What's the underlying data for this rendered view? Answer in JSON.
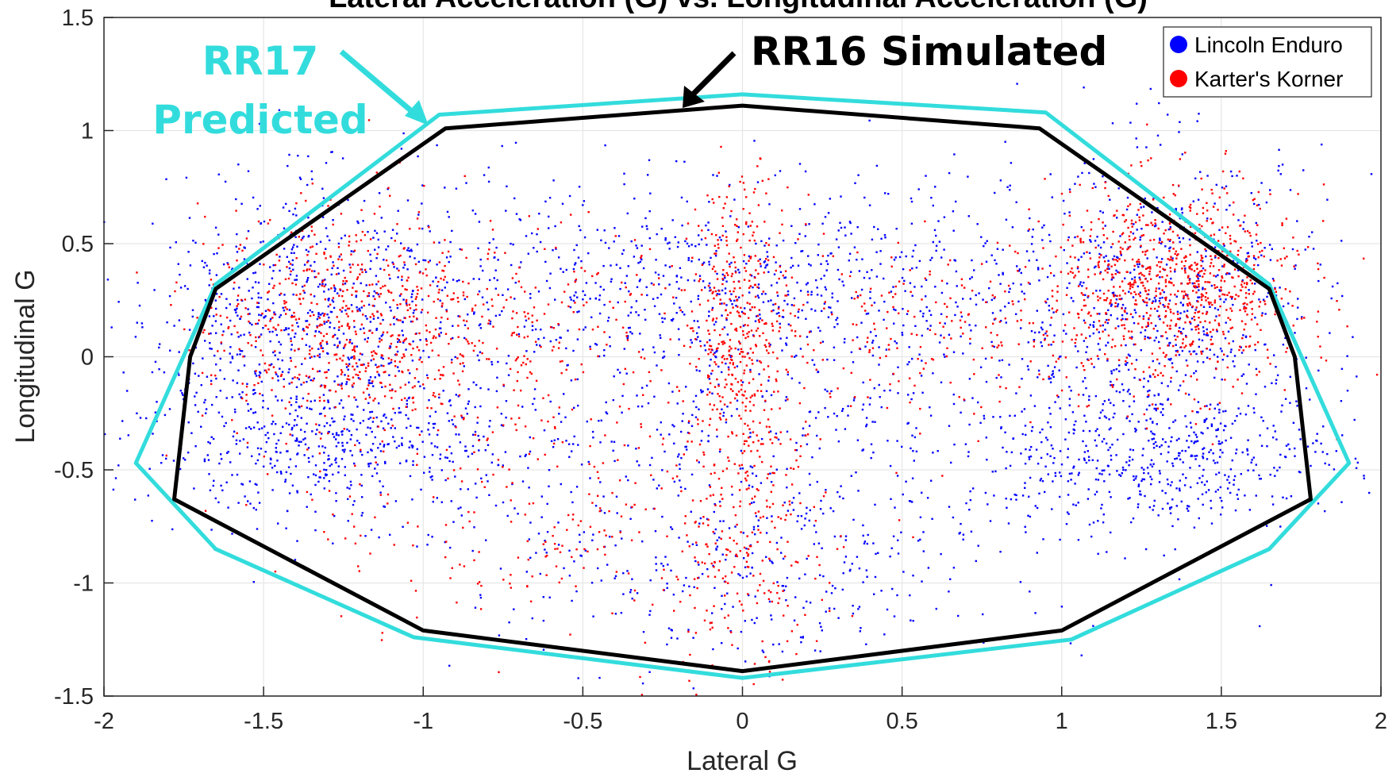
{
  "chart_data": {
    "type": "scatter",
    "title": "Lateral Acceleration (G) vs. Longitudinal Acceleration (G)",
    "xlabel": "Lateral G",
    "ylabel": "Longitudinal G",
    "xlim": [
      -2,
      2
    ],
    "ylim": [
      -1.5,
      1.5
    ],
    "x_ticks": [
      -2,
      -1.5,
      -1,
      -0.5,
      0,
      0.5,
      1,
      1.5,
      2
    ],
    "y_ticks": [
      -1.5,
      -1,
      -0.5,
      0,
      0.5,
      1,
      1.5
    ],
    "x_tick_labels": [
      "-2",
      "-1.5",
      "-1",
      "-0.5",
      "0",
      "0.5",
      "1",
      "1.5",
      "2"
    ],
    "y_tick_labels": [
      "-1.5",
      "-1",
      "-0.5",
      "0",
      "0.5",
      "1",
      "1.5"
    ],
    "grid": true,
    "legend_position": "top-right",
    "series": [
      {
        "name": "Lincoln Enduro",
        "color": "#0000ff",
        "clusters": [
          {
            "x": -1.35,
            "y": 0.2,
            "sx": 0.25,
            "sy": 0.3,
            "weight": 3
          },
          {
            "x": -1.3,
            "y": -0.4,
            "sx": 0.3,
            "sy": 0.15,
            "weight": 2
          },
          {
            "x": 1.35,
            "y": 0.2,
            "sx": 0.25,
            "sy": 0.35,
            "weight": 3
          },
          {
            "x": 1.3,
            "y": -0.45,
            "sx": 0.3,
            "sy": 0.15,
            "weight": 2
          },
          {
            "x": 0,
            "y": 0.35,
            "sx": 0.45,
            "sy": 0.2,
            "weight": 2
          },
          {
            "x": 0,
            "y": -0.4,
            "sx": 0.7,
            "sy": 0.35,
            "weight": 3
          },
          {
            "x": 0,
            "y": -1.05,
            "sx": 0.35,
            "sy": 0.2,
            "weight": 1
          },
          {
            "x": -0.6,
            "y": 0.3,
            "sx": 0.4,
            "sy": 0.3,
            "weight": 1
          },
          {
            "x": 0.6,
            "y": 0.3,
            "sx": 0.4,
            "sy": 0.3,
            "weight": 1
          }
        ]
      },
      {
        "name": "Karter's Korner",
        "color": "#ff0000",
        "clusters": [
          {
            "x": -1.25,
            "y": 0.15,
            "sx": 0.22,
            "sy": 0.25,
            "weight": 3
          },
          {
            "x": 1.35,
            "y": 0.3,
            "sx": 0.2,
            "sy": 0.22,
            "weight": 4
          },
          {
            "x": 0,
            "y": 0.1,
            "sx": 0.08,
            "sy": 0.35,
            "weight": 2
          },
          {
            "x": -0.7,
            "y": 0.1,
            "sx": 0.3,
            "sy": 0.25,
            "weight": 1
          },
          {
            "x": 0.6,
            "y": 0.15,
            "sx": 0.35,
            "sy": 0.2,
            "weight": 1
          },
          {
            "x": -0.6,
            "y": -0.7,
            "sx": 0.4,
            "sy": 0.3,
            "weight": 1
          },
          {
            "x": 0,
            "y": -0.9,
            "sx": 0.15,
            "sy": 0.3,
            "weight": 1
          }
        ]
      }
    ],
    "envelopes": [
      {
        "label": "RR17 Predicted",
        "label_lines": [
          "RR17",
          "Predicted"
        ],
        "color": "#33dcdc",
        "points": [
          [
            -0.95,
            1.07
          ],
          [
            0,
            1.16
          ],
          [
            0.95,
            1.08
          ],
          [
            1.65,
            0.32
          ],
          [
            1.9,
            -0.47
          ],
          [
            1.65,
            -0.85
          ],
          [
            1.03,
            -1.25
          ],
          [
            0,
            -1.42
          ],
          [
            -1.03,
            -1.24
          ],
          [
            -1.65,
            -0.85
          ],
          [
            -1.9,
            -0.47
          ],
          [
            -1.65,
            0.32
          ]
        ]
      },
      {
        "label": "RR16 Simulated",
        "color": "#000000",
        "points": [
          [
            -0.93,
            1.01
          ],
          [
            0,
            1.11
          ],
          [
            0.93,
            1.01
          ],
          [
            1.65,
            0.3
          ],
          [
            1.73,
            0.0
          ],
          [
            1.78,
            -0.63
          ],
          [
            1.0,
            -1.21
          ],
          [
            0,
            -1.39
          ],
          [
            -1.0,
            -1.21
          ],
          [
            -1.78,
            -0.63
          ],
          [
            -1.73,
            0.0
          ],
          [
            -1.65,
            0.3
          ]
        ]
      }
    ]
  }
}
